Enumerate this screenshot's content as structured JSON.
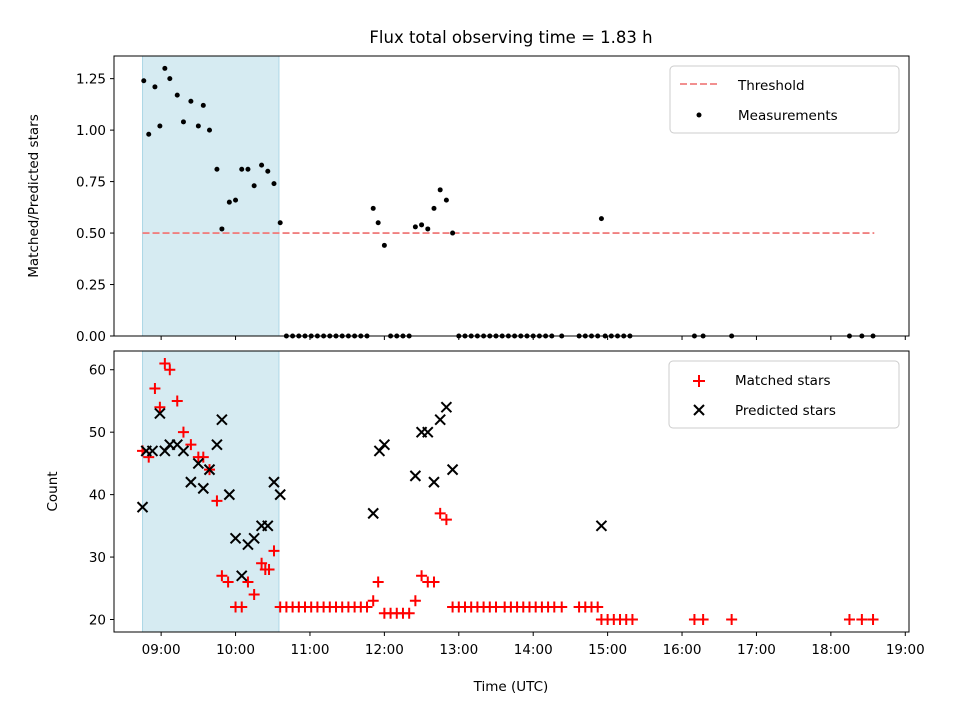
{
  "title": "Flux total observing time = 1.83 h",
  "colors": {
    "threshold": "#f08080",
    "measurements": "#000000",
    "matched": "#ff0000",
    "predicted": "#000000",
    "highlight": "#add8e6"
  },
  "chart_data": [
    {
      "type": "scatter",
      "ylabel": "Matched/Predicted stars",
      "xlabel": "",
      "xlim": [
        "08:22",
        "19:03"
      ],
      "ylim": [
        0,
        1.36
      ],
      "yticks": [
        0.0,
        0.25,
        0.5,
        0.75,
        1.0,
        1.25
      ],
      "ytick_labels": [
        "0.00",
        "0.25",
        "0.50",
        "0.75",
        "1.00",
        "1.25"
      ],
      "highlight_span": [
        "08:45",
        "10:35"
      ],
      "threshold": {
        "value": 0.5,
        "x_range": [
          "08:45",
          "18:35"
        ]
      },
      "legend": {
        "position": "top-right",
        "entries": [
          "Threshold",
          "Measurements"
        ]
      },
      "series": [
        {
          "name": "Measurements",
          "marker": "dot",
          "points": [
            [
              "08:46",
              1.24
            ],
            [
              "08:50",
              0.98
            ],
            [
              "08:55",
              1.21
            ],
            [
              "08:59",
              1.02
            ],
            [
              "09:03",
              1.3
            ],
            [
              "09:07",
              1.25
            ],
            [
              "09:13",
              1.17
            ],
            [
              "09:18",
              1.04
            ],
            [
              "09:24",
              1.14
            ],
            [
              "09:30",
              1.02
            ],
            [
              "09:34",
              1.12
            ],
            [
              "09:39",
              1.0
            ],
            [
              "09:45",
              0.81
            ],
            [
              "09:49",
              0.52
            ],
            [
              "09:55",
              0.65
            ],
            [
              "10:00",
              0.66
            ],
            [
              "10:05",
              0.81
            ],
            [
              "10:10",
              0.81
            ],
            [
              "10:15",
              0.73
            ],
            [
              "10:21",
              0.83
            ],
            [
              "10:26",
              0.8
            ],
            [
              "10:31",
              0.74
            ],
            [
              "10:36",
              0.55
            ],
            [
              "10:41",
              0.0
            ],
            [
              "10:46",
              0.0
            ],
            [
              "10:51",
              0.0
            ],
            [
              "10:56",
              0.0
            ],
            [
              "11:01",
              0.0
            ],
            [
              "11:06",
              0.0
            ],
            [
              "11:11",
              0.0
            ],
            [
              "11:16",
              0.0
            ],
            [
              "11:21",
              0.0
            ],
            [
              "11:26",
              0.0
            ],
            [
              "11:31",
              0.0
            ],
            [
              "11:36",
              0.0
            ],
            [
              "11:41",
              0.0
            ],
            [
              "11:46",
              0.0
            ],
            [
              "11:51",
              0.62
            ],
            [
              "11:55",
              0.55
            ],
            [
              "12:00",
              0.44
            ],
            [
              "12:05",
              0.0
            ],
            [
              "12:10",
              0.0
            ],
            [
              "12:15",
              0.0
            ],
            [
              "12:20",
              0.0
            ],
            [
              "12:25",
              0.53
            ],
            [
              "12:30",
              0.54
            ],
            [
              "12:35",
              0.52
            ],
            [
              "12:40",
              0.62
            ],
            [
              "12:45",
              0.71
            ],
            [
              "12:50",
              0.66
            ],
            [
              "12:55",
              0.5
            ],
            [
              "13:00",
              0.0
            ],
            [
              "13:05",
              0.0
            ],
            [
              "13:10",
              0.0
            ],
            [
              "13:15",
              0.0
            ],
            [
              "13:20",
              0.0
            ],
            [
              "13:25",
              0.0
            ],
            [
              "13:30",
              0.0
            ],
            [
              "13:35",
              0.0
            ],
            [
              "13:40",
              0.0
            ],
            [
              "13:45",
              0.0
            ],
            [
              "13:50",
              0.0
            ],
            [
              "13:55",
              0.0
            ],
            [
              "14:00",
              0.0
            ],
            [
              "14:05",
              0.0
            ],
            [
              "14:10",
              0.0
            ],
            [
              "14:15",
              0.0
            ],
            [
              "14:23",
              0.0
            ],
            [
              "14:37",
              0.0
            ],
            [
              "14:42",
              0.0
            ],
            [
              "14:47",
              0.0
            ],
            [
              "14:52",
              0.0
            ],
            [
              "14:55",
              0.57
            ],
            [
              "14:58",
              0.0
            ],
            [
              "15:03",
              0.0
            ],
            [
              "15:08",
              0.0
            ],
            [
              "15:13",
              0.0
            ],
            [
              "15:18",
              0.0
            ],
            [
              "16:10",
              0.0
            ],
            [
              "16:17",
              0.0
            ],
            [
              "16:40",
              0.0
            ],
            [
              "18:15",
              0.0
            ],
            [
              "18:25",
              0.0
            ],
            [
              "18:34",
              0.0
            ]
          ]
        }
      ]
    },
    {
      "type": "scatter",
      "ylabel": "Count",
      "xlabel": "Time (UTC)",
      "xlim": [
        "08:22",
        "19:03"
      ],
      "ylim": [
        18,
        63
      ],
      "yticks": [
        20,
        30,
        40,
        50,
        60
      ],
      "ytick_labels": [
        "20",
        "30",
        "40",
        "50",
        "60"
      ],
      "xticks": [
        "09:00",
        "10:00",
        "11:00",
        "12:00",
        "13:00",
        "14:00",
        "15:00",
        "16:00",
        "17:00",
        "18:00",
        "19:00"
      ],
      "xtick_labels": [
        "09:00",
        "10:00",
        "11:00",
        "12:00",
        "13:00",
        "14:00",
        "15:00",
        "16:00",
        "17:00",
        "18:00",
        "19:00"
      ],
      "highlight_span": [
        "08:45",
        "10:35"
      ],
      "legend": {
        "position": "top-right",
        "entries": [
          "Matched stars",
          "Predicted stars"
        ]
      },
      "series": [
        {
          "name": "Matched stars",
          "marker": "plus",
          "points": [
            [
              "08:45",
              47
            ],
            [
              "08:50",
              46
            ],
            [
              "08:55",
              57
            ],
            [
              "08:59",
              54
            ],
            [
              "09:03",
              61
            ],
            [
              "09:07",
              60
            ],
            [
              "09:13",
              55
            ],
            [
              "09:18",
              50
            ],
            [
              "09:24",
              48
            ],
            [
              "09:30",
              46
            ],
            [
              "09:34",
              46
            ],
            [
              "09:39",
              44
            ],
            [
              "09:45",
              39
            ],
            [
              "09:49",
              27
            ],
            [
              "09:54",
              26
            ],
            [
              "10:00",
              22
            ],
            [
              "10:05",
              22
            ],
            [
              "10:10",
              26
            ],
            [
              "10:15",
              24
            ],
            [
              "10:21",
              29
            ],
            [
              "10:24",
              28
            ],
            [
              "10:27",
              28
            ],
            [
              "10:31",
              31
            ],
            [
              "10:36",
              22
            ],
            [
              "10:41",
              22
            ],
            [
              "10:46",
              22
            ],
            [
              "10:51",
              22
            ],
            [
              "10:56",
              22
            ],
            [
              "11:01",
              22
            ],
            [
              "11:06",
              22
            ],
            [
              "11:11",
              22
            ],
            [
              "11:16",
              22
            ],
            [
              "11:21",
              22
            ],
            [
              "11:26",
              22
            ],
            [
              "11:31",
              22
            ],
            [
              "11:36",
              22
            ],
            [
              "11:41",
              22
            ],
            [
              "11:46",
              22
            ],
            [
              "11:51",
              23
            ],
            [
              "11:55",
              26
            ],
            [
              "12:00",
              21
            ],
            [
              "12:05",
              21
            ],
            [
              "12:10",
              21
            ],
            [
              "12:15",
              21
            ],
            [
              "12:20",
              21
            ],
            [
              "12:25",
              23
            ],
            [
              "12:30",
              27
            ],
            [
              "12:35",
              26
            ],
            [
              "12:40",
              26
            ],
            [
              "12:45",
              37
            ],
            [
              "12:50",
              36
            ],
            [
              "12:55",
              22
            ],
            [
              "13:00",
              22
            ],
            [
              "13:05",
              22
            ],
            [
              "13:10",
              22
            ],
            [
              "13:15",
              22
            ],
            [
              "13:20",
              22
            ],
            [
              "13:25",
              22
            ],
            [
              "13:30",
              22
            ],
            [
              "13:37",
              22
            ],
            [
              "13:42",
              22
            ],
            [
              "13:47",
              22
            ],
            [
              "13:52",
              22
            ],
            [
              "13:57",
              22
            ],
            [
              "14:02",
              22
            ],
            [
              "14:07",
              22
            ],
            [
              "14:12",
              22
            ],
            [
              "14:17",
              22
            ],
            [
              "14:23",
              22
            ],
            [
              "14:37",
              22
            ],
            [
              "14:42",
              22
            ],
            [
              "14:47",
              22
            ],
            [
              "14:52",
              22
            ],
            [
              "14:55",
              20
            ],
            [
              "15:00",
              20
            ],
            [
              "15:05",
              20
            ],
            [
              "15:10",
              20
            ],
            [
              "15:15",
              20
            ],
            [
              "15:20",
              20
            ],
            [
              "16:10",
              20
            ],
            [
              "16:17",
              20
            ],
            [
              "16:40",
              20
            ],
            [
              "18:15",
              20
            ],
            [
              "18:25",
              20
            ],
            [
              "18:34",
              20
            ]
          ]
        },
        {
          "name": "Predicted stars",
          "marker": "x",
          "points": [
            [
              "08:45",
              38
            ],
            [
              "08:48",
              47
            ],
            [
              "08:53",
              47
            ],
            [
              "08:59",
              53
            ],
            [
              "09:03",
              47
            ],
            [
              "09:07",
              48
            ],
            [
              "09:13",
              48
            ],
            [
              "09:18",
              47
            ],
            [
              "09:24",
              42
            ],
            [
              "09:30",
              45
            ],
            [
              "09:34",
              41
            ],
            [
              "09:39",
              44
            ],
            [
              "09:45",
              48
            ],
            [
              "09:49",
              52
            ],
            [
              "09:55",
              40
            ],
            [
              "10:00",
              33
            ],
            [
              "10:05",
              27
            ],
            [
              "10:10",
              32
            ],
            [
              "10:15",
              33
            ],
            [
              "10:21",
              35
            ],
            [
              "10:26",
              35
            ],
            [
              "10:31",
              42
            ],
            [
              "10:36",
              40
            ],
            [
              "11:51",
              37
            ],
            [
              "11:56",
              47
            ],
            [
              "12:00",
              48
            ],
            [
              "12:25",
              43
            ],
            [
              "12:30",
              50
            ],
            [
              "12:35",
              50
            ],
            [
              "12:40",
              42
            ],
            [
              "12:45",
              52
            ],
            [
              "12:50",
              54
            ],
            [
              "12:55",
              44
            ],
            [
              "14:55",
              35
            ]
          ]
        }
      ]
    }
  ]
}
